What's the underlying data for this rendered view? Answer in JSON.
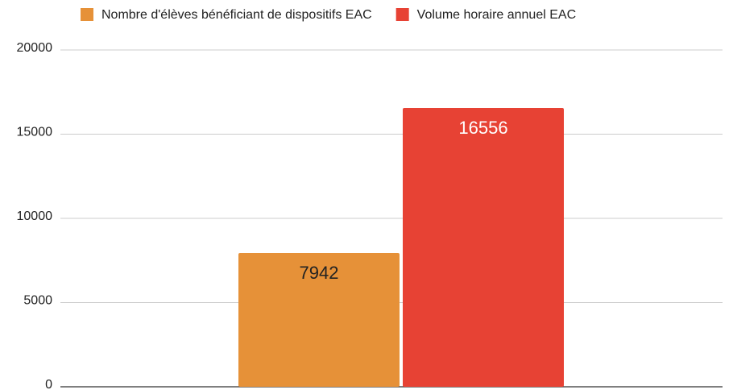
{
  "chart_data": {
    "type": "bar",
    "categories": [
      null
    ],
    "series": [
      {
        "name": "Nombre d'élèves bénéficiant de dispositifs EAC",
        "color": "#e69138",
        "values": [
          7942
        ],
        "label_color": "#222222"
      },
      {
        "name": "Volume horaire annuel EAC",
        "color": "#e74234",
        "values": [
          16556
        ],
        "label_color": "#ffffff"
      }
    ],
    "ylim": [
      0,
      20000
    ],
    "yticks": [
      0,
      5000,
      10000,
      15000,
      20000
    ],
    "grid": true,
    "legend": "top"
  }
}
